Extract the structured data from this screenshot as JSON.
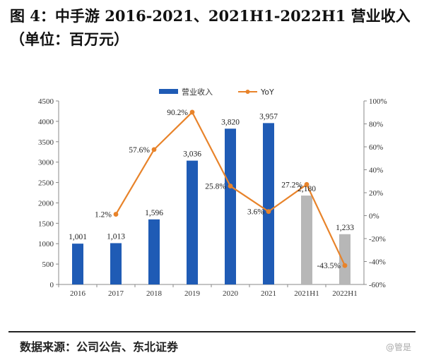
{
  "title": "图 4：中手游 2016-2021、2021H1-2022H1 营业收入（单位：百万元）",
  "source": "数据来源：公司公告、东北证券",
  "watermark": "@管是",
  "colors": {
    "actual_bar": "#1f5bb5",
    "half_year_bar": "#b7b7b7",
    "yoy_line": "#e8832a",
    "axis": "#888888"
  },
  "chart_data": {
    "type": "bar",
    "categories": [
      "2016",
      "2017",
      "2018",
      "2019",
      "2020",
      "2021",
      "2021H1",
      "2022H1"
    ],
    "series": [
      {
        "name": "营业收入",
        "kind": "bar",
        "axis": "left",
        "values": [
          1001,
          1013,
          1596,
          3036,
          3820,
          3957,
          2180,
          1233
        ],
        "labels": [
          "1,001",
          "1,013",
          "1,596",
          "3,036",
          "3,820",
          "3,957",
          "2,180",
          "1,233"
        ]
      },
      {
        "name": "YoY",
        "kind": "line",
        "axis": "right",
        "values": [
          null,
          1.2,
          57.6,
          90.2,
          25.8,
          3.6,
          27.2,
          -43.5
        ],
        "labels": [
          "",
          "1.2%",
          "57.6%",
          "90.2%",
          "25.8%",
          "3.6%",
          "27.2%",
          "-43.5%"
        ]
      }
    ],
    "left_axis": {
      "ylim": [
        0,
        4500
      ],
      "ticks": [
        "0",
        "500",
        "1000",
        "1500",
        "2000",
        "2500",
        "3000",
        "3500",
        "4000",
        "4500"
      ]
    },
    "right_axis": {
      "ylim": [
        -60,
        100
      ],
      "ticks": [
        "-60%",
        "-40%",
        "-20%",
        "0%",
        "20%",
        "40%",
        "60%",
        "80%",
        "100%"
      ]
    },
    "legend": {
      "position": "top-center",
      "entries": [
        "营业收入",
        "YoY"
      ]
    },
    "grid": false
  }
}
